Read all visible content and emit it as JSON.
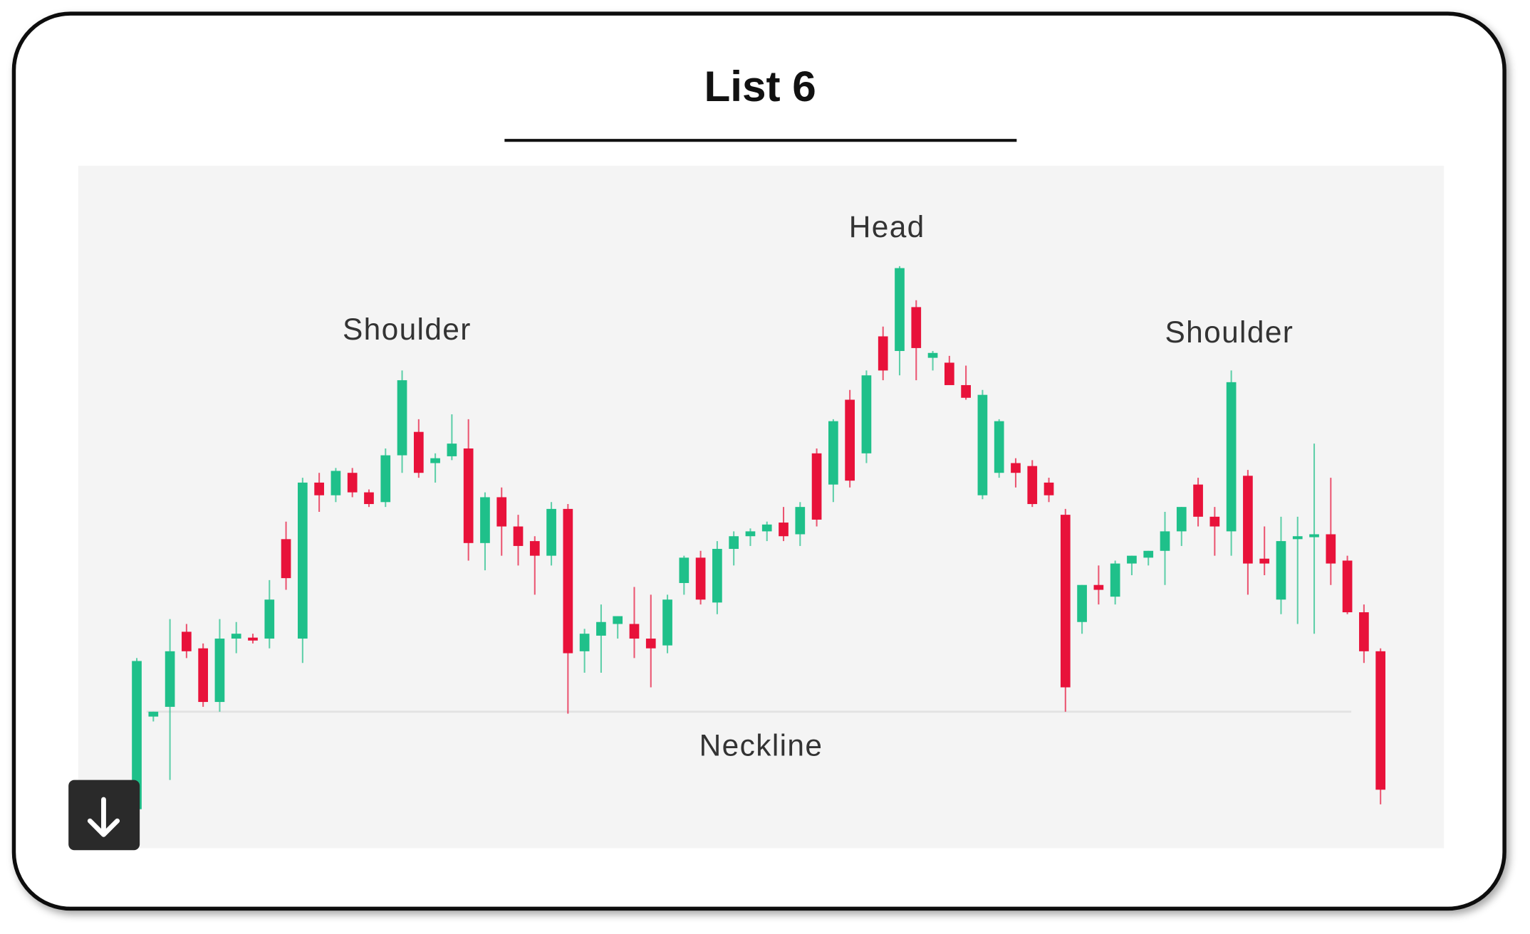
{
  "header": {
    "title": "List 6"
  },
  "chart_data": {
    "type": "candlestick",
    "annotations": [
      "Shoulder",
      "Head",
      "Shoulder",
      "Neckline"
    ],
    "up_color": "#1fc08a",
    "down_color": "#e8123a",
    "ylim": [
      30,
      730
    ],
    "neckline": 170,
    "open": [
      70,
      165,
      175,
      252,
      235,
      180,
      245,
      246,
      245,
      347,
      245,
      405,
      392,
      415,
      395,
      385,
      433,
      457,
      425,
      432,
      440,
      343,
      390,
      360,
      345,
      330,
      378,
      232,
      248,
      260,
      260,
      245,
      238,
      302,
      328,
      282,
      337,
      350,
      355,
      364,
      352,
      435,
      403,
      490,
      435,
      555,
      540,
      585,
      533,
      528,
      505,
      392,
      415,
      425,
      422,
      405,
      372,
      262,
      300,
      288,
      322,
      328,
      335,
      355,
      403,
      370,
      355,
      412,
      327,
      285,
      347,
      350,
      352,
      325,
      272,
      232
    ],
    "high": [
      225,
      170,
      265,
      260,
      240,
      265,
      262,
      250,
      305,
      365,
      410,
      415,
      420,
      420,
      398,
      440,
      520,
      470,
      435,
      475,
      470,
      395,
      400,
      372,
      350,
      385,
      383,
      255,
      280,
      268,
      298,
      290,
      290,
      330,
      335,
      345,
      355,
      358,
      365,
      380,
      385,
      440,
      470,
      500,
      520,
      565,
      627,
      592,
      540,
      535,
      525,
      500,
      470,
      430,
      428,
      410,
      378,
      300,
      320,
      325,
      330,
      335,
      375,
      380,
      410,
      380,
      520,
      418,
      360,
      370,
      370,
      445,
      410,
      330,
      280,
      235
    ],
    "low": [
      65,
      160,
      100,
      225,
      175,
      170,
      230,
      240,
      235,
      295,
      220,
      375,
      385,
      390,
      380,
      380,
      415,
      410,
      405,
      428,
      325,
      315,
      330,
      320,
      290,
      320,
      168,
      210,
      210,
      245,
      225,
      195,
      230,
      290,
      280,
      270,
      320,
      340,
      345,
      345,
      340,
      360,
      385,
      400,
      425,
      510,
      515,
      510,
      520,
      510,
      490,
      388,
      410,
      400,
      380,
      385,
      170,
      250,
      280,
      280,
      310,
      320,
      300,
      340,
      360,
      330,
      330,
      290,
      310,
      270,
      260,
      250,
      300,
      270,
      220,
      75
    ],
    "close": [
      222,
      170,
      232,
      232,
      180,
      245,
      250,
      243,
      285,
      307,
      405,
      392,
      417,
      395,
      383,
      433,
      510,
      415,
      430,
      445,
      343,
      390,
      360,
      340,
      330,
      378,
      230,
      250,
      262,
      268,
      245,
      235,
      285,
      328,
      285,
      337,
      350,
      355,
      362,
      350,
      380,
      367,
      468,
      407,
      515,
      520,
      625,
      543,
      538,
      505,
      492,
      495,
      468,
      415,
      383,
      392,
      195,
      300,
      295,
      322,
      330,
      335,
      355,
      380,
      370,
      360,
      508,
      322,
      322,
      345,
      350,
      352,
      322,
      272,
      232,
      90
    ]
  }
}
